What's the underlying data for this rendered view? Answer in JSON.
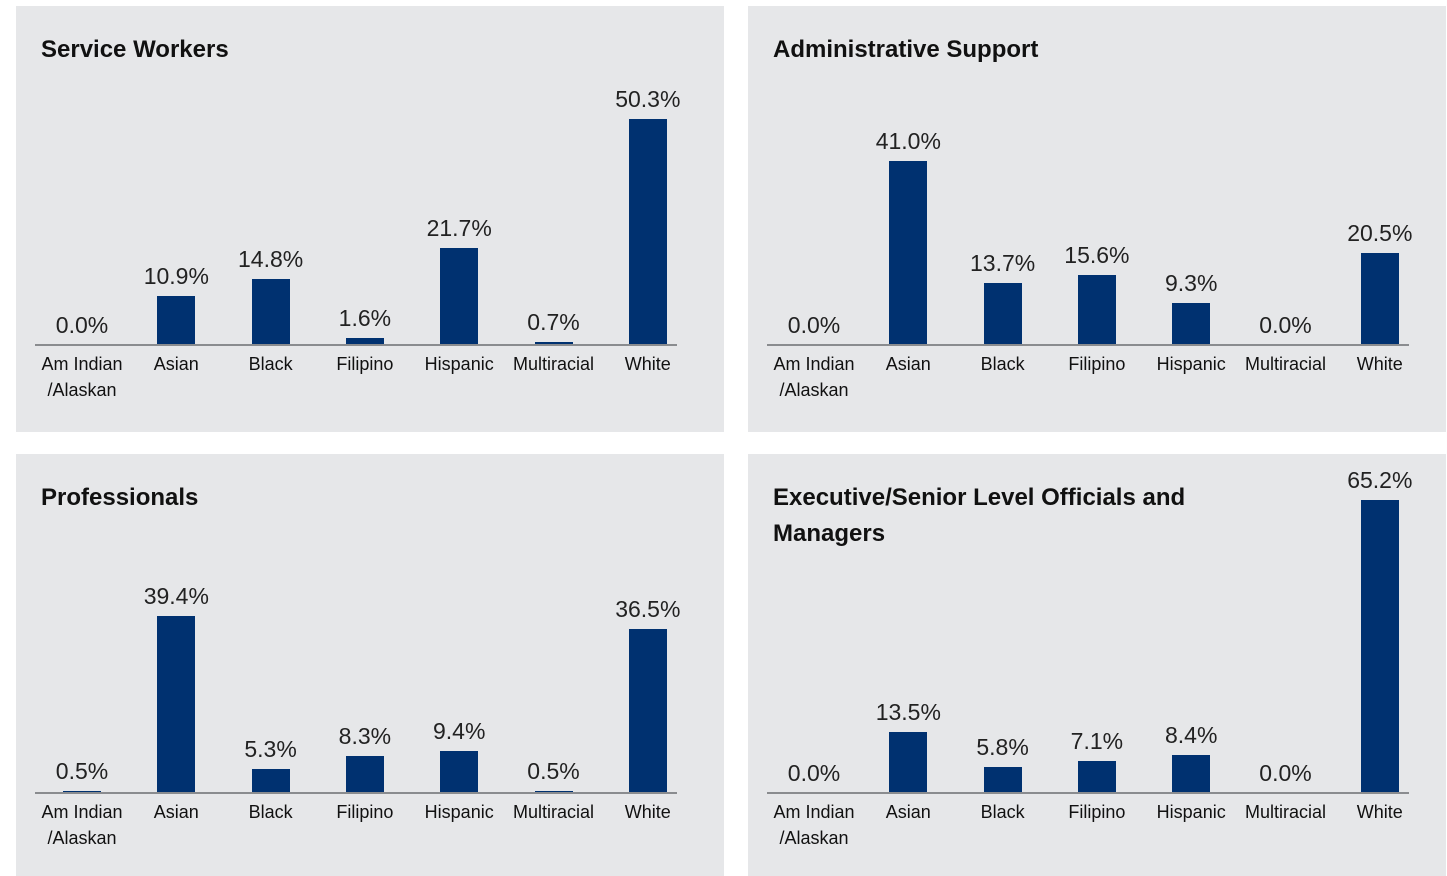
{
  "chart_data": [
    {
      "type": "bar",
      "title": "Service Workers",
      "categories": [
        "Am Indian\n/Alaskan",
        "Asian",
        "Black",
        "Filipino",
        "Hispanic",
        "Multiracial",
        "White"
      ],
      "values": [
        0.0,
        10.9,
        14.8,
        1.6,
        21.7,
        0.7,
        50.3
      ],
      "value_labels": [
        "0.0%",
        "10.9%",
        "14.8%",
        "1.6%",
        "21.7%",
        "0.7%",
        "50.3%"
      ],
      "color": "#003170"
    },
    {
      "type": "bar",
      "title": "Administrative Support",
      "categories": [
        "Am Indian\n/Alaskan",
        "Asian",
        "Black",
        "Filipino",
        "Hispanic",
        "Multiracial",
        "White"
      ],
      "values": [
        0.0,
        41.0,
        13.7,
        15.6,
        9.3,
        0.0,
        20.5
      ],
      "value_labels": [
        "0.0%",
        "41.0%",
        "13.7%",
        "15.6%",
        "9.3%",
        "0.0%",
        "20.5%"
      ],
      "color": "#003170"
    },
    {
      "type": "bar",
      "title": "Professionals",
      "categories": [
        "Am Indian\n/Alaskan",
        "Asian",
        "Black",
        "Filipino",
        "Hispanic",
        "Multiracial",
        "White"
      ],
      "values": [
        0.5,
        39.4,
        5.3,
        8.3,
        9.4,
        0.5,
        36.5
      ],
      "value_labels": [
        "0.5%",
        "39.4%",
        "5.3%",
        "8.3%",
        "9.4%",
        "0.5%",
        "36.5%"
      ],
      "color": "#003170"
    },
    {
      "type": "bar",
      "title": "Executive/Senior Level Officials and Managers",
      "categories": [
        "Am Indian\n/Alaskan",
        "Asian",
        "Black",
        "Filipino",
        "Hispanic",
        "Multiracial",
        "White"
      ],
      "values": [
        0.0,
        13.5,
        5.8,
        7.1,
        8.4,
        0.0,
        65.2
      ],
      "value_labels": [
        "0.0%",
        "13.5%",
        "5.8%",
        "7.1%",
        "8.4%",
        "0.0%",
        "65.2%"
      ],
      "color": "#003170"
    }
  ]
}
